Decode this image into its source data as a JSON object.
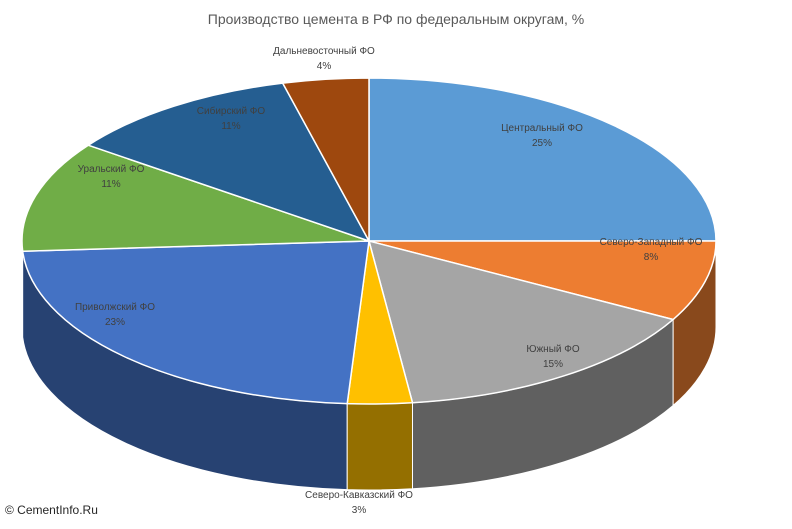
{
  "chart_data": {
    "type": "pie",
    "title": "Производство цемента в РФ по федеральным округам, %",
    "slices": [
      {
        "name": "Центральный ФО",
        "value": 25,
        "label": "25%",
        "color": "#5B9BD5"
      },
      {
        "name": "Северо-Западный ФО",
        "value": 8,
        "label": "8%",
        "color": "#ED7D31"
      },
      {
        "name": "Южный ФО",
        "value": 15,
        "label": "15%",
        "color": "#A5A5A5"
      },
      {
        "name": "Северо-Кавказский ФО",
        "value": 3,
        "label": "3%",
        "color": "#FFC000"
      },
      {
        "name": "Приволжский ФО",
        "value": 23,
        "label": "23%",
        "color": "#4472C4"
      },
      {
        "name": "Уральский ФО",
        "value": 11,
        "label": "11%",
        "color": "#70AD47"
      },
      {
        "name": "Сибирский ФО",
        "value": 11,
        "label": "11%",
        "color": "#255E91"
      },
      {
        "name": "Дальневосточный ФО",
        "value": 4,
        "label": "4%",
        "color": "#9E480E"
      }
    ],
    "legend": "none",
    "style": "3d-pie"
  },
  "watermark": "© CementInfo.Ru"
}
